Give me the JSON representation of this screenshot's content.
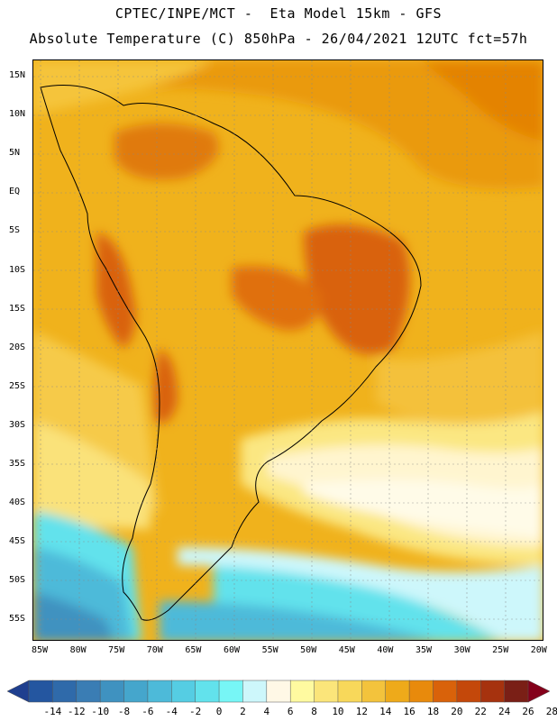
{
  "title_line1": "CPTEC/INPE/MCT -  Eta Model 15km - GFS",
  "title_line2": "Absolute Temperature (C) 850hPa - 26/04/2021 12UTC fct=57h",
  "lat_labels": [
    "15N",
    "10N",
    "5N",
    "EQ",
    "5S",
    "10S",
    "15S",
    "20S",
    "25S",
    "30S",
    "35S",
    "40S",
    "45S",
    "50S",
    "55S"
  ],
  "lon_labels": [
    "85W",
    "80W",
    "75W",
    "70W",
    "65W",
    "60W",
    "55W",
    "50W",
    "45W",
    "40W",
    "35W",
    "30W",
    "25W",
    "20W"
  ],
  "colorbar": {
    "labels": [
      "-14",
      "-12",
      "-10",
      "-8",
      "-6",
      "-4",
      "-2",
      "0",
      "2",
      "4",
      "6",
      "8",
      "10",
      "12",
      "14",
      "16",
      "18",
      "20",
      "22",
      "24",
      "26",
      "28"
    ],
    "colors": [
      "#1f3f8f",
      "#2456a0",
      "#2f6aaa",
      "#3a7db4",
      "#3f92c0",
      "#45a6cc",
      "#4dbad9",
      "#55cde3",
      "#62e2ec",
      "#77f6f6",
      "#cdf7fb",
      "#fff8e6",
      "#fffaa0",
      "#fbe57a",
      "#f8d85a",
      "#f3c33c",
      "#eeaa1a",
      "#e88a0c",
      "#d9620a",
      "#c4480a",
      "#a6320e",
      "#7a1f16",
      "#84001a"
    ]
  },
  "map": {
    "legend_scale": "Temperature (C)",
    "regions": "South America and adjacent oceans"
  }
}
